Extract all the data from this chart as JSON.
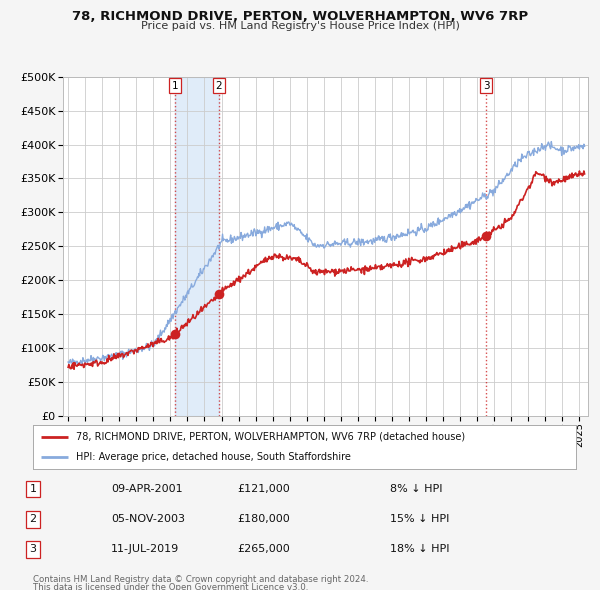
{
  "title1": "78, RICHMOND DRIVE, PERTON, WOLVERHAMPTON, WV6 7RP",
  "title2": "Price paid vs. HM Land Registry's House Price Index (HPI)",
  "ylim": [
    0,
    500000
  ],
  "xlim_start": 1994.7,
  "xlim_end": 2025.5,
  "bg_color": "#f5f5f5",
  "plot_bg_color": "#ffffff",
  "grid_color": "#cccccc",
  "hpi_color": "#88aadd",
  "price_color": "#cc2222",
  "sale_marker_color": "#cc2222",
  "sale_marker_size": 7,
  "transactions": [
    {
      "num": 1,
      "date_str": "09-APR-2001",
      "date_x": 2001.27,
      "price": 121000,
      "pct": "8%",
      "dir": "↓"
    },
    {
      "num": 2,
      "date_str": "05-NOV-2003",
      "date_x": 2003.84,
      "price": 180000,
      "pct": "15%",
      "dir": "↓"
    },
    {
      "num": 3,
      "date_str": "11-JUL-2019",
      "date_x": 2019.53,
      "price": 265000,
      "pct": "18%",
      "dir": "↓"
    }
  ],
  "legend_label_price": "78, RICHMOND DRIVE, PERTON, WOLVERHAMPTON, WV6 7RP (detached house)",
  "legend_label_hpi": "HPI: Average price, detached house, South Staffordshire",
  "footer1": "Contains HM Land Registry data © Crown copyright and database right 2024.",
  "footer2": "This data is licensed under the Open Government Licence v3.0.",
  "shade_x0": 2001.27,
  "shade_x1": 2003.84
}
